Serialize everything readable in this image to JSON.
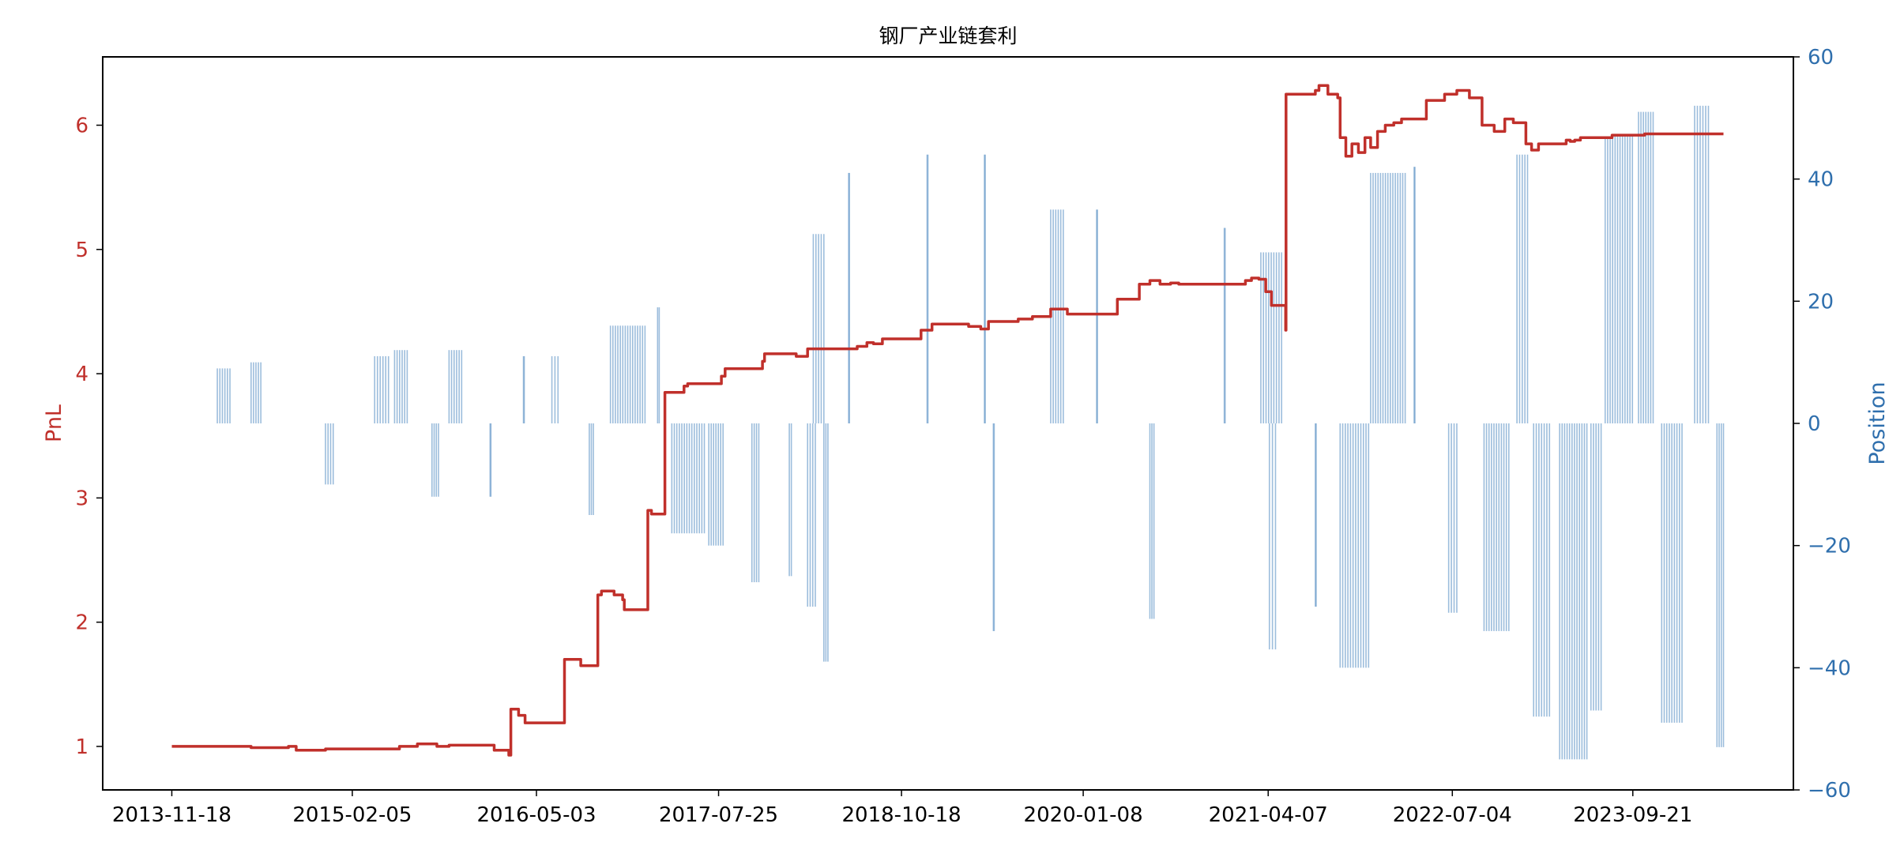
{
  "chart_data": {
    "type": "line",
    "title": "钢厂产业链套利",
    "ylabel": "PnL",
    "y2label": "Position",
    "colors": {
      "pnl": "#c0302b",
      "position": "#4a86c0",
      "axis_left": "#c0302b",
      "axis_right": "#2f6fad"
    },
    "x_ticks": [
      "2013-11-18",
      "2015-02-05",
      "2016-05-03",
      "2017-07-25",
      "2018-10-18",
      "2020-01-08",
      "2021-04-07",
      "2022-07-04",
      "2023-09-21"
    ],
    "y_ticks": [
      "1",
      "2",
      "3",
      "4",
      "5",
      "6"
    ],
    "y2_ticks": [
      "−60",
      "−40",
      "−20",
      "0",
      "20",
      "40",
      "60"
    ],
    "xlim": [
      "2013-06-01",
      "2024-10-20"
    ],
    "ylim": [
      0.65,
      6.55
    ],
    "y2lim": [
      -60,
      60
    ],
    "pnl_series": {
      "name": "PnL",
      "x": [
        "2013-11-18",
        "2014-06-01",
        "2014-09-01",
        "2014-09-20",
        "2014-12-01",
        "2015-06-01",
        "2015-07-15",
        "2015-09-01",
        "2015-10-01",
        "2015-12-01",
        "2016-01-20",
        "2016-02-25",
        "2016-03-01",
        "2016-03-20",
        "2016-04-05",
        "2016-04-15",
        "2016-07-10",
        "2016-07-11",
        "2016-08-20",
        "2016-09-10",
        "2016-10-01",
        "2016-10-10",
        "2016-11-10",
        "2016-12-01",
        "2016-12-05",
        "2017-01-20",
        "2017-02-01",
        "2017-02-10",
        "2017-03-05",
        "2017-03-15",
        "2017-05-01",
        "2017-05-10",
        "2017-06-30",
        "2017-08-01",
        "2017-08-10",
        "2017-10-01",
        "2017-11-10",
        "2017-11-15",
        "2018-02-01",
        "2018-03-01",
        "2018-04-01",
        "2018-07-01",
        "2018-07-25",
        "2018-08-10",
        "2018-09-01",
        "2018-11-15",
        "2018-12-05",
        "2019-01-01",
        "2019-01-20",
        "2019-04-01",
        "2019-05-01",
        "2019-05-20",
        "2019-08-01",
        "2019-09-05",
        "2019-10-10",
        "2019-10-20",
        "2019-11-30",
        "2020-04-01",
        "2020-05-01",
        "2020-05-25",
        "2020-06-20",
        "2020-07-15",
        "2020-08-10",
        "2020-08-30",
        "2021-01-20",
        "2021-02-10",
        "2021-02-25",
        "2021-03-15",
        "2021-04-01",
        "2021-04-15",
        "2021-05-20",
        "2021-05-21",
        "2021-08-01",
        "2021-08-10",
        "2021-09-01",
        "2021-09-25",
        "2021-10-01",
        "2021-10-15",
        "2021-10-30",
        "2021-11-15",
        "2021-12-01",
        "2021-12-15",
        "2022-01-01",
        "2022-01-20",
        "2022-02-10",
        "2022-03-01",
        "2022-05-01",
        "2022-06-15",
        "2022-07-15",
        "2022-08-15",
        "2022-09-15",
        "2022-10-15",
        "2022-11-10",
        "2022-12-01",
        "2023-01-01",
        "2023-01-15",
        "2023-02-01",
        "2023-03-01",
        "2023-03-20",
        "2023-04-10",
        "2023-04-20",
        "2023-05-01",
        "2023-05-15",
        "2023-06-01",
        "2023-08-01",
        "2023-10-01",
        "2023-10-20",
        "2023-11-15",
        "2024-01-10",
        "2024-03-10",
        "2024-04-15",
        "2024-05-01"
      ],
      "values": [
        1.0,
        0.99,
        1.0,
        0.97,
        0.98,
        1.0,
        1.02,
        1.0,
        1.01,
        1.01,
        0.97,
        0.93,
        1.3,
        1.25,
        1.19,
        1.19,
        1.19,
        1.7,
        1.65,
        1.65,
        2.22,
        2.25,
        2.22,
        2.18,
        2.1,
        2.1,
        2.9,
        2.87,
        2.87,
        3.85,
        3.9,
        3.92,
        3.92,
        3.98,
        4.04,
        4.04,
        4.1,
        4.16,
        4.14,
        4.2,
        4.2,
        4.22,
        4.25,
        4.24,
        4.28,
        4.28,
        4.35,
        4.4,
        4.4,
        4.38,
        4.36,
        4.42,
        4.44,
        4.46,
        4.46,
        4.52,
        4.48,
        4.6,
        4.6,
        4.72,
        4.75,
        4.72,
        4.73,
        4.72,
        4.72,
        4.75,
        4.77,
        4.76,
        4.66,
        4.55,
        4.35,
        6.25,
        6.28,
        6.32,
        6.25,
        6.22,
        5.9,
        5.75,
        5.85,
        5.78,
        5.9,
        5.82,
        5.95,
        6.0,
        6.02,
        6.05,
        6.2,
        6.25,
        6.28,
        6.22,
        6.0,
        5.95,
        6.05,
        6.02,
        5.85,
        5.8,
        5.85,
        5.85,
        5.85,
        5.88,
        5.87,
        5.88,
        5.9,
        5.9,
        5.92,
        5.92,
        5.93,
        5.93,
        5.93,
        5.93,
        5.93,
        5.93
      ]
    },
    "position_series": {
      "name": "Position",
      "clusters": [
        {
          "start": "2014-03-10",
          "end": "2014-04-10",
          "value": 9
        },
        {
          "start": "2014-06-01",
          "end": "2014-06-25",
          "value": 10
        },
        {
          "start": "2014-12-01",
          "end": "2014-12-20",
          "value": -10
        },
        {
          "start": "2015-04-01",
          "end": "2015-05-05",
          "value": 11
        },
        {
          "start": "2015-05-20",
          "end": "2015-06-20",
          "value": 12
        },
        {
          "start": "2015-08-20",
          "end": "2015-09-05",
          "value": -12
        },
        {
          "start": "2015-10-01",
          "end": "2015-11-01",
          "value": 12
        },
        {
          "start": "2016-01-10",
          "end": "2016-01-12",
          "value": -12
        },
        {
          "start": "2016-04-01",
          "end": "2016-04-03",
          "value": 11
        },
        {
          "start": "2016-06-10",
          "end": "2016-06-25",
          "value": 11
        },
        {
          "start": "2016-09-10",
          "end": "2016-09-20",
          "value": -15
        },
        {
          "start": "2016-11-01",
          "end": "2017-01-25",
          "value": 16
        },
        {
          "start": "2017-02-25",
          "end": "2017-03-01",
          "value": 19
        },
        {
          "start": "2017-04-01",
          "end": "2017-06-20",
          "value": -18
        },
        {
          "start": "2017-07-01",
          "end": "2017-08-05",
          "value": -20
        },
        {
          "start": "2017-10-15",
          "end": "2017-11-01",
          "value": -26
        },
        {
          "start": "2018-01-15",
          "end": "2018-01-20",
          "value": -25
        },
        {
          "start": "2018-03-15",
          "end": "2018-04-10",
          "value": 31
        },
        {
          "start": "2018-03-01",
          "end": "2018-03-20",
          "value": -30
        },
        {
          "start": "2018-04-10",
          "end": "2018-04-20",
          "value": -39
        },
        {
          "start": "2018-06-10",
          "end": "2018-06-12",
          "value": 41
        },
        {
          "start": "2018-12-20",
          "end": "2018-12-22",
          "value": 44
        },
        {
          "start": "2019-05-10",
          "end": "2019-05-12",
          "value": 44
        },
        {
          "start": "2019-06-01",
          "end": "2019-06-03",
          "value": -34
        },
        {
          "start": "2019-10-20",
          "end": "2019-11-20",
          "value": 35
        },
        {
          "start": "2020-02-10",
          "end": "2020-02-12",
          "value": 35
        },
        {
          "start": "2020-06-20",
          "end": "2020-06-30",
          "value": -32
        },
        {
          "start": "2020-12-20",
          "end": "2020-12-22",
          "value": 32
        },
        {
          "start": "2021-03-20",
          "end": "2021-05-10",
          "value": 28
        },
        {
          "start": "2021-04-10",
          "end": "2021-04-25",
          "value": -37
        },
        {
          "start": "2021-08-01",
          "end": "2021-08-03",
          "value": -30
        },
        {
          "start": "2021-10-01",
          "end": "2021-12-10",
          "value": -40
        },
        {
          "start": "2021-12-15",
          "end": "2022-03-10",
          "value": 41
        },
        {
          "start": "2022-04-01",
          "end": "2022-04-03",
          "value": 42
        },
        {
          "start": "2022-06-25",
          "end": "2022-07-15",
          "value": -31
        },
        {
          "start": "2022-09-20",
          "end": "2022-11-20",
          "value": -34
        },
        {
          "start": "2022-12-10",
          "end": "2023-01-05",
          "value": 44
        },
        {
          "start": "2023-01-20",
          "end": "2023-02-28",
          "value": -48
        },
        {
          "start": "2023-03-25",
          "end": "2023-05-31",
          "value": -55
        },
        {
          "start": "2023-06-10",
          "end": "2023-07-05",
          "value": -47
        },
        {
          "start": "2023-07-15",
          "end": "2023-09-20",
          "value": 47
        },
        {
          "start": "2023-10-05",
          "end": "2023-11-10",
          "value": 51
        },
        {
          "start": "2023-12-01",
          "end": "2024-01-20",
          "value": -49
        },
        {
          "start": "2024-02-20",
          "end": "2024-03-25",
          "value": 52
        },
        {
          "start": "2024-04-15",
          "end": "2024-05-01",
          "value": -53
        }
      ]
    }
  }
}
